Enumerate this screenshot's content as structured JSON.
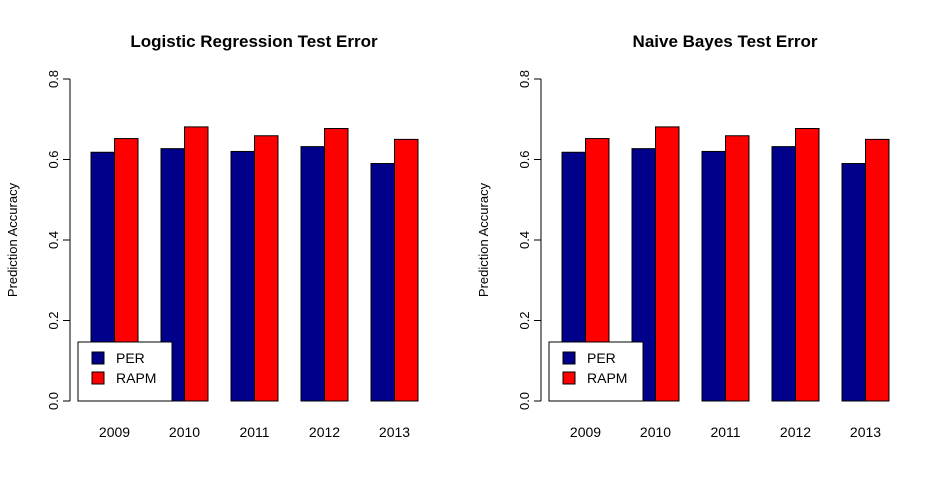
{
  "chart_data": [
    {
      "type": "bar",
      "title": "Logistic Regression Test Error",
      "xlabel": "",
      "ylabel": "Prediction Accuracy",
      "categories": [
        "2009",
        "2010",
        "2011",
        "2012",
        "2013"
      ],
      "series": [
        {
          "name": "PER",
          "color": "#00008B",
          "values": [
            0.618,
            0.627,
            0.62,
            0.632,
            0.59
          ]
        },
        {
          "name": "RAPM",
          "color": "#FF0000",
          "values": [
            0.652,
            0.681,
            0.659,
            0.677,
            0.65
          ]
        }
      ],
      "ylim": [
        0,
        0.8
      ],
      "yticks": [
        "0.0",
        "0.2",
        "0.4",
        "0.6",
        "0.8"
      ],
      "legend": "bottom-left",
      "grid": false
    },
    {
      "type": "bar",
      "title": "Naive Bayes Test Error",
      "xlabel": "",
      "ylabel": "Prediction Accuracy",
      "categories": [
        "2009",
        "2010",
        "2011",
        "2012",
        "2013"
      ],
      "series": [
        {
          "name": "PER",
          "color": "#00008B",
          "values": [
            0.618,
            0.627,
            0.62,
            0.632,
            0.59
          ]
        },
        {
          "name": "RAPM",
          "color": "#FF0000",
          "values": [
            0.652,
            0.681,
            0.659,
            0.677,
            0.65
          ]
        }
      ],
      "ylim": [
        0,
        0.8
      ],
      "yticks": [
        "0.0",
        "0.2",
        "0.4",
        "0.6",
        "0.8"
      ],
      "legend": "bottom-left",
      "grid": false
    }
  ]
}
